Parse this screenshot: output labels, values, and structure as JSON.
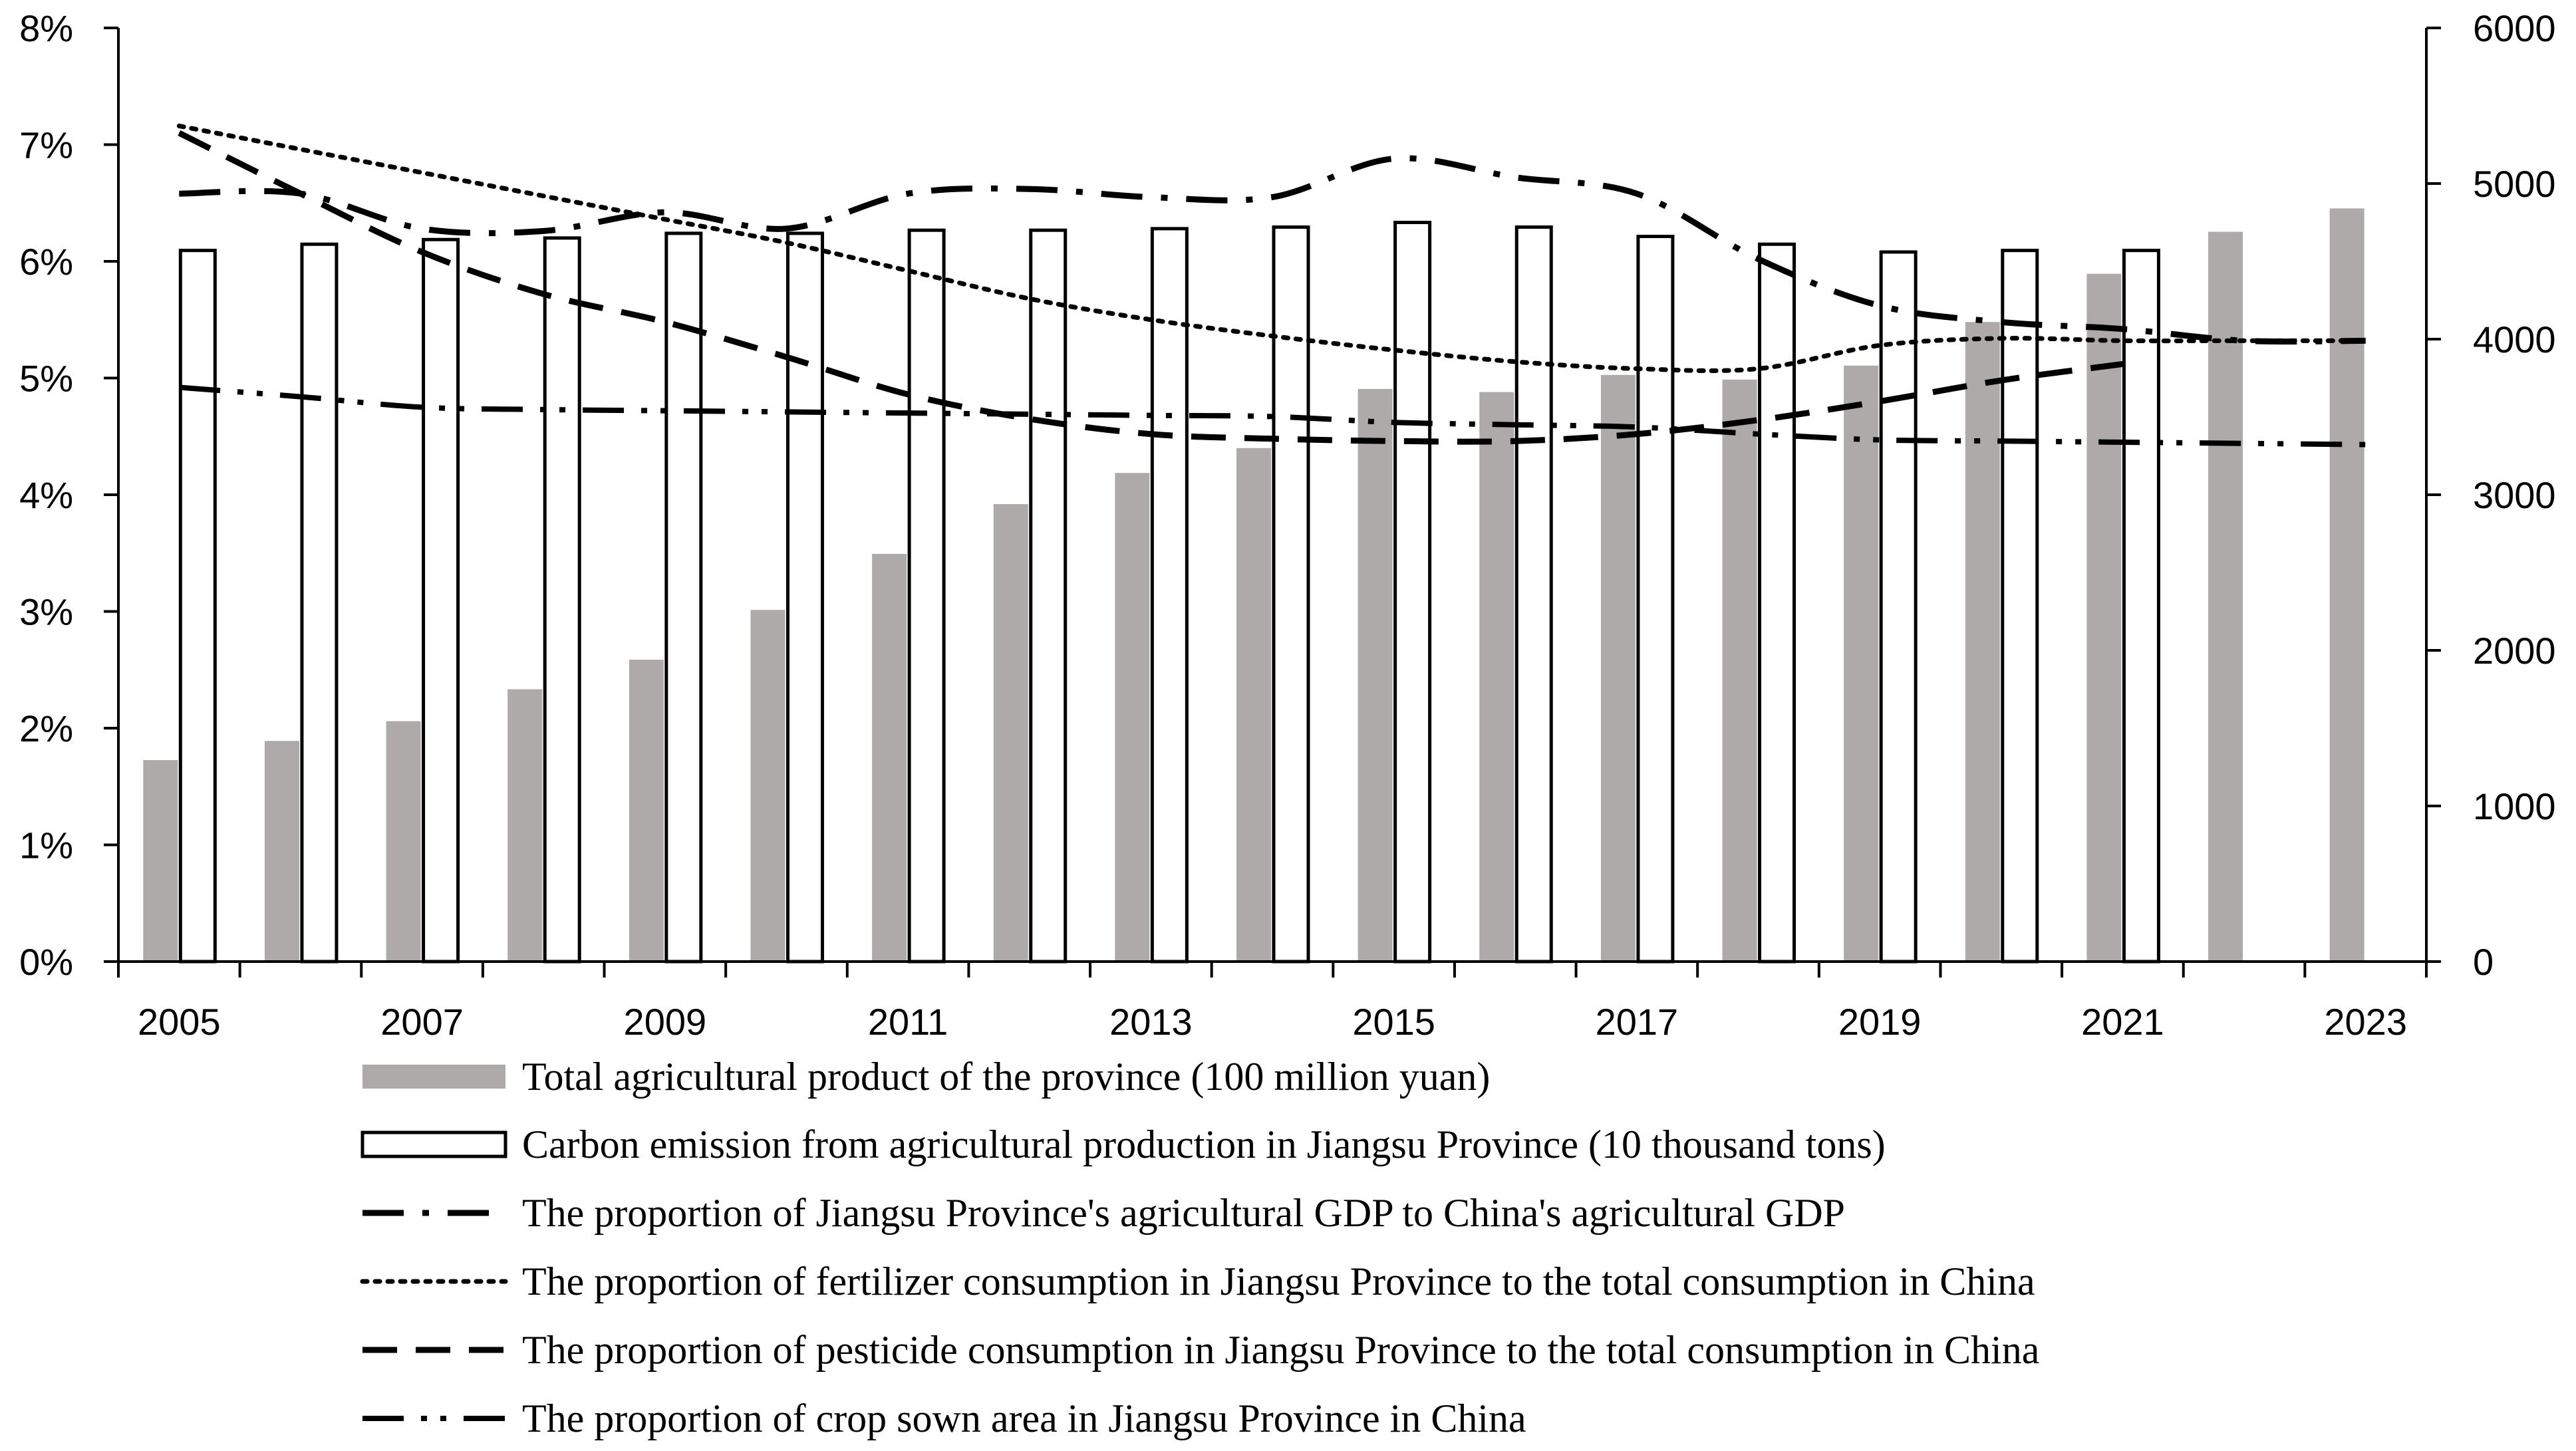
{
  "chart_data": {
    "type": "bar",
    "title": "",
    "years": [
      2005,
      2006,
      2007,
      2008,
      2009,
      2010,
      2011,
      2012,
      2013,
      2014,
      2015,
      2016,
      2017,
      2018,
      2019,
      2020,
      2021,
      2022,
      2023
    ],
    "x_tick_labels": [
      "2005",
      "2007",
      "2009",
      "2011",
      "2013",
      "2015",
      "2017",
      "2019",
      "2021",
      "2023"
    ],
    "left_axis": {
      "min": 0,
      "max": 8,
      "step": 1,
      "labels": [
        "0%",
        "1%",
        "2%",
        "3%",
        "4%",
        "5%",
        "6%",
        "7%",
        "8%"
      ]
    },
    "right_axis": {
      "min": 0,
      "max": 6000,
      "step": 1000,
      "labels": [
        "0",
        "1000",
        "2000",
        "3000",
        "4000",
        "5000",
        "6000"
      ]
    },
    "bar_series": [
      {
        "key": "total_agri_product",
        "name": "Total agricultural product of the province (100 million yuan)",
        "axis": "right",
        "color": "#aeaaaa",
        "values": [
          1295,
          1418,
          1545,
          1750,
          1940,
          2260,
          2620,
          2940,
          3140,
          3300,
          3680,
          3660,
          3770,
          3740,
          3830,
          4110,
          4420,
          4690,
          4840
        ]
      },
      {
        "key": "carbon_emission",
        "name": "Carbon emission from agricultural production in Jiangsu Province (10 thousand tons)",
        "axis": "right",
        "color": "#ffffff",
        "values": [
          4570,
          4610,
          4640,
          4650,
          4680,
          4680,
          4700,
          4700,
          4710,
          4720,
          4750,
          4720,
          4660,
          4610,
          4560,
          4570,
          4570,
          null,
          null
        ]
      }
    ],
    "line_series": [
      {
        "key": "gdp_share",
        "name": "The proportion of Jiangsu Province's agricultural GDP to China's agricultural GDP",
        "axis": "left",
        "style": "long-dash-dot",
        "values": [
          6.58,
          6.58,
          6.28,
          6.26,
          6.42,
          6.28,
          6.58,
          6.62,
          6.55,
          6.55,
          6.88,
          6.72,
          6.58,
          6.02,
          5.62,
          5.48,
          5.42,
          5.32,
          5.32
        ]
      },
      {
        "key": "fertilizer_share",
        "name": "The proportion of fertilizer consumption in Jiangsu Province to the total consumption in China",
        "axis": "left",
        "style": "dotted",
        "values": [
          7.16,
          6.96,
          6.76,
          6.56,
          6.36,
          6.16,
          5.92,
          5.68,
          5.5,
          5.36,
          5.24,
          5.14,
          5.08,
          5.08,
          5.28,
          5.34,
          5.32,
          5.32,
          5.32
        ]
      },
      {
        "key": "pesticide_share",
        "name": "The proportion of pesticide consumption in Jiangsu Province to the total consumption in China",
        "axis": "left",
        "style": "dashed",
        "values": [
          7.1,
          6.58,
          6.08,
          5.72,
          5.48,
          5.18,
          4.86,
          4.65,
          4.52,
          4.48,
          4.46,
          4.46,
          4.52,
          4.64,
          4.8,
          4.98,
          5.12,
          null,
          null
        ]
      },
      {
        "key": "sown_area_share",
        "name": "The proportion of crop sown area in Jiangsu Province in China",
        "axis": "left",
        "style": "long-dash-dot-dot",
        "values": [
          4.92,
          4.84,
          4.75,
          4.73,
          4.72,
          4.71,
          4.7,
          4.69,
          4.68,
          4.67,
          4.62,
          4.6,
          4.58,
          4.52,
          4.47,
          4.46,
          4.45,
          4.44,
          4.43
        ]
      }
    ],
    "legend_position": "bottom-center"
  }
}
